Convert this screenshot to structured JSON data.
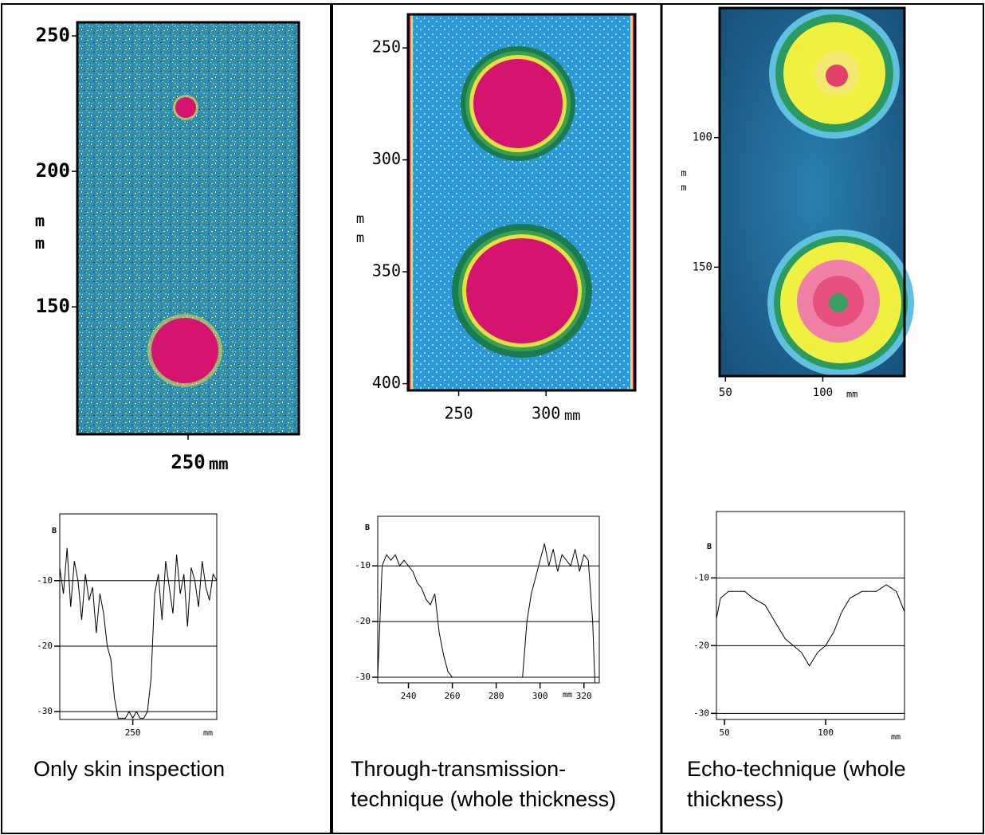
{
  "chart_data": [
    {
      "type": "image",
      "xlim": [
        230,
        270
      ],
      "ylim": [
        103,
        255
      ],
      "xticks": [
        250
      ],
      "yticks": [
        250,
        200,
        150
      ],
      "xlabel": "mm",
      "ylabel": "mm"
    },
    {
      "type": "line",
      "color": "#000000",
      "grid": true,
      "ylabel": "B",
      "xlabel": "mm",
      "xlim": [
        230,
        273
      ],
      "ylim": [
        -31.2,
        0.2
      ],
      "xticks": [
        250
      ],
      "yticks": [
        -10,
        -20,
        -30
      ],
      "x": [
        230,
        231,
        232,
        233,
        234,
        235,
        236,
        237,
        238,
        239,
        240,
        241,
        242,
        243,
        244,
        245,
        246,
        247,
        248,
        249,
        250,
        251,
        252,
        253,
        254,
        255,
        256,
        257,
        258,
        259,
        260,
        261,
        262,
        263,
        264,
        265,
        266,
        267,
        268,
        269,
        270,
        271,
        272,
        273
      ],
      "values": [
        -8,
        -12,
        -5,
        -14,
        -7,
        -10,
        -16,
        -9,
        -13,
        -11,
        -18,
        -12,
        -15,
        -20,
        -22,
        -28,
        -31,
        -31,
        -31,
        -30,
        -31,
        -30,
        -31,
        -31,
        -30,
        -25,
        -12,
        -9,
        -16,
        -7,
        -11,
        -15,
        -6,
        -12,
        -9,
        -17,
        -8,
        -10,
        -14,
        -7,
        -11,
        -13,
        -9,
        -10
      ]
    },
    {
      "type": "image",
      "xlim": [
        221,
        351
      ],
      "ylim": [
        403,
        235
      ],
      "xticks": [
        250,
        300
      ],
      "yticks": [
        250,
        300,
        350,
        400
      ],
      "xlabel": "mm",
      "ylabel": "mm"
    },
    {
      "type": "line",
      "color": "#000000",
      "grid": true,
      "ylabel": "B",
      "xlabel": "mm",
      "xlim": [
        226,
        327
      ],
      "ylim": [
        -31,
        -1.1
      ],
      "xticks": [
        240,
        260,
        280,
        300,
        320
      ],
      "yticks": [
        -10,
        -20,
        -30
      ],
      "x": [
        226,
        228,
        230,
        232,
        234,
        236,
        238,
        240,
        242,
        244,
        246,
        248,
        250,
        252,
        254,
        256,
        258,
        260,
        270,
        280,
        290,
        292,
        294,
        296,
        298,
        300,
        302,
        304,
        306,
        308,
        310,
        312,
        314,
        316,
        318,
        320,
        322,
        324,
        325
      ],
      "values": [
        -30,
        -10,
        -8,
        -9,
        -8,
        -10,
        -9,
        -10,
        -11,
        -13,
        -14,
        -16,
        -17,
        -15,
        -22,
        -26,
        -29,
        -30,
        -30,
        -30,
        -30,
        -30,
        -20,
        -15,
        -12,
        -9,
        -6,
        -10,
        -7,
        -11,
        -8,
        -9,
        -10,
        -7,
        -11,
        -8,
        -9,
        -20,
        -31
      ]
    },
    {
      "type": "image",
      "xlim": [
        47,
        142
      ],
      "ylim": [
        192,
        50
      ],
      "xticks": [
        50,
        100
      ],
      "yticks": [
        100,
        150
      ],
      "xlabel": "mm",
      "ylabel": "mm"
    },
    {
      "type": "line",
      "color": "#000000",
      "grid": true,
      "ylabel": "B",
      "xlabel": "mm",
      "xlim": [
        46,
        139
      ],
      "ylim": [
        -30.9,
        -0.2
      ],
      "xticks": [
        50,
        100
      ],
      "yticks": [
        -10,
        -20,
        -30
      ],
      "x": [
        46,
        48,
        52,
        56,
        60,
        64,
        70,
        76,
        80,
        84,
        88,
        92,
        96,
        100,
        104,
        108,
        112,
        118,
        125,
        130,
        135,
        139
      ],
      "values": [
        -16,
        -13,
        -12,
        -12,
        -12,
        -13,
        -14,
        -17,
        -19,
        -20,
        -21,
        -23,
        -21,
        -20,
        -18,
        -15,
        -13,
        -12,
        -12,
        -11,
        -12,
        -15
      ]
    }
  ],
  "captions": [
    "Only skin inspection",
    " Through-transmission-technique (whole thickness)",
    "Echo-technique (whole thickness)"
  ]
}
